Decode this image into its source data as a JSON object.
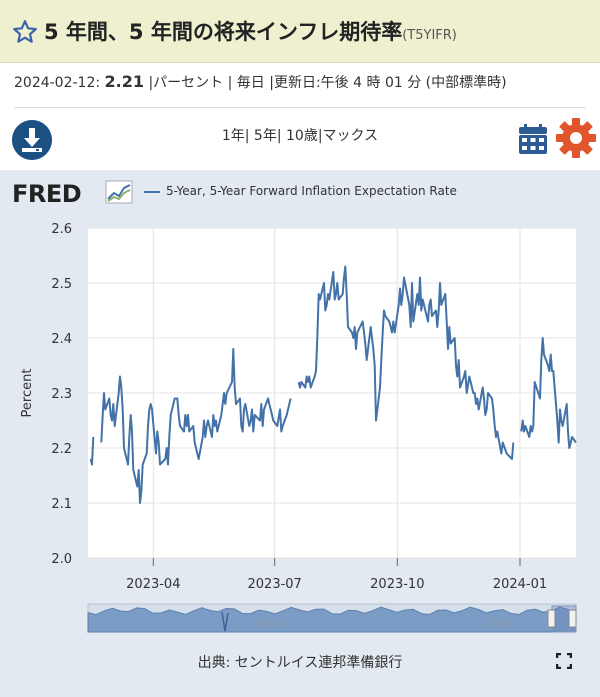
{
  "header": {
    "title": "5 年間、5 年間の将来インフレ期待率",
    "series_code": "(T5YIFR)"
  },
  "meta": {
    "date": "2024-02-12:",
    "value": "2.21",
    "rest": "|パーセント | 毎日 |更新日:午後 4 時 01 分 (中部標準時)"
  },
  "range_text": "1年| 5年| 10歳|マックス",
  "source_text": "出典: セントルイス連邦準備銀行",
  "brand": "FRED",
  "colors": {
    "line": "#4472a8",
    "accent": "#1c4f82",
    "gear": "#e0552c"
  },
  "icons": [
    "star-icon",
    "download-icon",
    "calendar-icon",
    "gear-icon",
    "fullscreen-icon",
    "fred-logo-icon"
  ],
  "chart_data": {
    "type": "line",
    "title": "",
    "ylabel": "Percent",
    "xlabel": "",
    "legend": [
      {
        "name": "5-Year, 5-Year Forward Inflation Expectation Rate",
        "color": "#4472a8"
      }
    ],
    "ylim": [
      2.0,
      2.6
    ],
    "yticks": [
      2.0,
      2.1,
      2.2,
      2.3,
      2.4,
      2.5,
      2.6
    ],
    "xlim": [
      "2023-02-11",
      "2024-02-12"
    ],
    "xticks": [
      "2023-04",
      "2023-07",
      "2023-10",
      "2024-01"
    ],
    "grid": true,
    "legend_position": "top-left",
    "series": [
      {
        "name": "5-Year, 5-Year Forward Inflation Expectation Rate",
        "points": [
          [
            "2023-02-13",
            2.18
          ],
          [
            "2023-02-14",
            2.17
          ],
          [
            "2023-02-15",
            2.22
          ],
          [
            "2023-02-21",
            2.21
          ],
          [
            "2023-02-22",
            2.26
          ],
          [
            "2023-02-23",
            2.3
          ],
          [
            "2023-02-24",
            2.27
          ],
          [
            "2023-02-27",
            2.29
          ],
          [
            "2023-02-28",
            2.26
          ],
          [
            "2023-03-01",
            2.25
          ],
          [
            "2023-03-02",
            2.28
          ],
          [
            "2023-03-03",
            2.24
          ],
          [
            "2023-03-06",
            2.3
          ],
          [
            "2023-03-07",
            2.33
          ],
          [
            "2023-03-08",
            2.31
          ],
          [
            "2023-03-09",
            2.27
          ],
          [
            "2023-03-10",
            2.2
          ],
          [
            "2023-03-13",
            2.17
          ],
          [
            "2023-03-14",
            2.22
          ],
          [
            "2023-03-15",
            2.26
          ],
          [
            "2023-03-16",
            2.23
          ],
          [
            "2023-03-17",
            2.16
          ],
          [
            "2023-03-20",
            2.13
          ],
          [
            "2023-03-21",
            2.16
          ],
          [
            "2023-03-22",
            2.1
          ],
          [
            "2023-03-23",
            2.12
          ],
          [
            "2023-03-24",
            2.17
          ],
          [
            "2023-03-27",
            2.19
          ],
          [
            "2023-03-28",
            2.24
          ],
          [
            "2023-03-29",
            2.27
          ],
          [
            "2023-03-30",
            2.28
          ],
          [
            "2023-03-31",
            2.27
          ],
          [
            "2023-04-03",
            2.19
          ],
          [
            "2023-04-04",
            2.23
          ],
          [
            "2023-04-05",
            2.21
          ],
          [
            "2023-04-06",
            2.17
          ],
          [
            "2023-04-10",
            2.18
          ],
          [
            "2023-04-11",
            2.2
          ],
          [
            "2023-04-12",
            2.17
          ],
          [
            "2023-04-13",
            2.22
          ],
          [
            "2023-04-14",
            2.26
          ],
          [
            "2023-04-17",
            2.29
          ],
          [
            "2023-04-18",
            2.29
          ],
          [
            "2023-04-19",
            2.29
          ],
          [
            "2023-04-20",
            2.26
          ],
          [
            "2023-04-21",
            2.24
          ],
          [
            "2023-04-24",
            2.23
          ],
          [
            "2023-04-25",
            2.26
          ],
          [
            "2023-04-26",
            2.24
          ],
          [
            "2023-04-27",
            2.26
          ],
          [
            "2023-04-28",
            2.23
          ],
          [
            "2023-05-01",
            2.24
          ],
          [
            "2023-05-02",
            2.21
          ],
          [
            "2023-05-03",
            2.2
          ],
          [
            "2023-05-04",
            2.19
          ],
          [
            "2023-05-05",
            2.18
          ],
          [
            "2023-05-08",
            2.22
          ],
          [
            "2023-05-09",
            2.25
          ],
          [
            "2023-05-10",
            2.22
          ],
          [
            "2023-05-11",
            2.24
          ],
          [
            "2023-05-12",
            2.25
          ],
          [
            "2023-05-15",
            2.22
          ],
          [
            "2023-05-16",
            2.26
          ],
          [
            "2023-05-17",
            2.24
          ],
          [
            "2023-05-18",
            2.25
          ],
          [
            "2023-05-19",
            2.23
          ],
          [
            "2023-05-22",
            2.26
          ],
          [
            "2023-05-23",
            2.28
          ],
          [
            "2023-05-24",
            2.3
          ],
          [
            "2023-05-25",
            2.28
          ],
          [
            "2023-05-26",
            2.3
          ],
          [
            "2023-05-30",
            2.32
          ],
          [
            "2023-05-31",
            2.38
          ],
          [
            "2023-06-01",
            2.31
          ],
          [
            "2023-06-02",
            2.28
          ],
          [
            "2023-06-05",
            2.29
          ],
          [
            "2023-06-06",
            2.24
          ],
          [
            "2023-06-07",
            2.23
          ],
          [
            "2023-06-08",
            2.27
          ],
          [
            "2023-06-09",
            2.28
          ],
          [
            "2023-06-12",
            2.24
          ],
          [
            "2023-06-13",
            2.25
          ],
          [
            "2023-06-14",
            2.27
          ],
          [
            "2023-06-15",
            2.23
          ],
          [
            "2023-06-16",
            2.26
          ],
          [
            "2023-06-20",
            2.25
          ],
          [
            "2023-06-21",
            2.28
          ],
          [
            "2023-06-22",
            2.24
          ],
          [
            "2023-06-23",
            2.27
          ],
          [
            "2023-06-26",
            2.29
          ],
          [
            "2023-06-27",
            2.28
          ],
          [
            "2023-06-28",
            2.27
          ],
          [
            "2023-06-29",
            2.26
          ],
          [
            "2023-06-30",
            2.25
          ],
          [
            "2023-07-03",
            2.24
          ],
          [
            "2023-07-05",
            2.27
          ],
          [
            "2023-07-06",
            2.23
          ],
          [
            "2023-07-07",
            2.24
          ],
          [
            "2023-07-10",
            2.26
          ],
          [
            "2023-07-11",
            2.27
          ],
          [
            "2023-07-12",
            2.28
          ],
          [
            "2023-07-13",
            2.29
          ],
          [
            "2023-07-19",
            2.32
          ],
          [
            "2023-07-20",
            2.31
          ],
          [
            "2023-07-21",
            2.32
          ],
          [
            "2023-07-24",
            2.31
          ],
          [
            "2023-07-25",
            2.33
          ],
          [
            "2023-07-26",
            2.32
          ],
          [
            "2023-07-27",
            2.33
          ],
          [
            "2023-07-28",
            2.31
          ],
          [
            "2023-07-31",
            2.33
          ],
          [
            "2023-08-01",
            2.34
          ],
          [
            "2023-08-02",
            2.4
          ],
          [
            "2023-08-03",
            2.48
          ],
          [
            "2023-08-04",
            2.47
          ],
          [
            "2023-08-07",
            2.5
          ],
          [
            "2023-08-08",
            2.45
          ],
          [
            "2023-08-09",
            2.46
          ],
          [
            "2023-08-10",
            2.48
          ],
          [
            "2023-08-11",
            2.47
          ],
          [
            "2023-08-14",
            2.52
          ],
          [
            "2023-08-15",
            2.47
          ],
          [
            "2023-08-16",
            2.48
          ],
          [
            "2023-08-17",
            2.5
          ],
          [
            "2023-08-18",
            2.47
          ],
          [
            "2023-08-21",
            2.48
          ],
          [
            "2023-08-22",
            2.51
          ],
          [
            "2023-08-23",
            2.53
          ],
          [
            "2023-08-24",
            2.48
          ],
          [
            "2023-08-25",
            2.42
          ],
          [
            "2023-08-28",
            2.41
          ],
          [
            "2023-08-29",
            2.4
          ],
          [
            "2023-08-30",
            2.42
          ],
          [
            "2023-08-31",
            2.38
          ],
          [
            "2023-09-01",
            2.41
          ],
          [
            "2023-09-05",
            2.43
          ],
          [
            "2023-09-06",
            2.41
          ],
          [
            "2023-09-07",
            2.39
          ],
          [
            "2023-09-08",
            2.36
          ],
          [
            "2023-09-11",
            2.42
          ],
          [
            "2023-09-12",
            2.4
          ],
          [
            "2023-09-13",
            2.38
          ],
          [
            "2023-09-14",
            2.35
          ],
          [
            "2023-09-15",
            2.25
          ],
          [
            "2023-09-18",
            2.31
          ],
          [
            "2023-09-19",
            2.36
          ],
          [
            "2023-09-20",
            2.41
          ],
          [
            "2023-09-21",
            2.45
          ],
          [
            "2023-09-22",
            2.44
          ],
          [
            "2023-09-25",
            2.43
          ],
          [
            "2023-09-26",
            2.42
          ],
          [
            "2023-09-27",
            2.41
          ],
          [
            "2023-09-28",
            2.43
          ],
          [
            "2023-09-29",
            2.41
          ],
          [
            "2023-10-02",
            2.46
          ],
          [
            "2023-10-03",
            2.49
          ],
          [
            "2023-10-04",
            2.46
          ],
          [
            "2023-10-05",
            2.48
          ],
          [
            "2023-10-06",
            2.51
          ],
          [
            "2023-10-10",
            2.46
          ],
          [
            "2023-10-11",
            2.42
          ],
          [
            "2023-10-12",
            2.5
          ],
          [
            "2023-10-13",
            2.43
          ],
          [
            "2023-10-16",
            2.48
          ],
          [
            "2023-10-17",
            2.46
          ],
          [
            "2023-10-18",
            2.51
          ],
          [
            "2023-10-19",
            2.45
          ],
          [
            "2023-10-20",
            2.47
          ],
          [
            "2023-10-23",
            2.44
          ],
          [
            "2023-10-24",
            2.43
          ],
          [
            "2023-10-25",
            2.46
          ],
          [
            "2023-10-26",
            2.47
          ],
          [
            "2023-10-27",
            2.44
          ],
          [
            "2023-10-30",
            2.45
          ],
          [
            "2023-10-31",
            2.42
          ],
          [
            "2023-11-01",
            2.45
          ],
          [
            "2023-11-02",
            2.5
          ],
          [
            "2023-11-03",
            2.46
          ],
          [
            "2023-11-06",
            2.48
          ],
          [
            "2023-11-07",
            2.43
          ],
          [
            "2023-11-08",
            2.38
          ],
          [
            "2023-11-09",
            2.42
          ],
          [
            "2023-11-10",
            2.39
          ],
          [
            "2023-11-13",
            2.4
          ],
          [
            "2023-11-14",
            2.35
          ],
          [
            "2023-11-15",
            2.33
          ],
          [
            "2023-11-16",
            2.36
          ],
          [
            "2023-11-17",
            2.31
          ],
          [
            "2023-11-20",
            2.33
          ],
          [
            "2023-11-21",
            2.34
          ],
          [
            "2023-11-22",
            2.3
          ],
          [
            "2023-11-24",
            2.33
          ],
          [
            "2023-11-27",
            2.3
          ],
          [
            "2023-11-28",
            2.3
          ],
          [
            "2023-11-29",
            2.28
          ],
          [
            "2023-11-30",
            2.29
          ],
          [
            "2023-12-01",
            2.27
          ],
          [
            "2023-12-04",
            2.31
          ],
          [
            "2023-12-05",
            2.29
          ],
          [
            "2023-12-06",
            2.26
          ],
          [
            "2023-12-07",
            2.27
          ],
          [
            "2023-12-08",
            2.3
          ],
          [
            "2023-12-11",
            2.29
          ],
          [
            "2023-12-12",
            2.27
          ],
          [
            "2023-12-13",
            2.24
          ],
          [
            "2023-12-14",
            2.22
          ],
          [
            "2023-12-15",
            2.23
          ],
          [
            "2023-12-18",
            2.19
          ],
          [
            "2023-12-19",
            2.21
          ],
          [
            "2023-12-22",
            2.19
          ],
          [
            "2023-12-26",
            2.18
          ],
          [
            "2023-12-27",
            2.21
          ],
          [
            "2024-01-02",
            2.23
          ],
          [
            "2024-01-03",
            2.25
          ],
          [
            "2024-01-04",
            2.23
          ],
          [
            "2024-01-05",
            2.24
          ],
          [
            "2024-01-08",
            2.22
          ],
          [
            "2024-01-09",
            2.24
          ],
          [
            "2024-01-10",
            2.23
          ],
          [
            "2024-01-11",
            2.24
          ],
          [
            "2024-01-12",
            2.32
          ],
          [
            "2024-01-16",
            2.29
          ],
          [
            "2024-01-17",
            2.36
          ],
          [
            "2024-01-18",
            2.4
          ],
          [
            "2024-01-19",
            2.37
          ],
          [
            "2024-01-22",
            2.35
          ],
          [
            "2024-01-23",
            2.34
          ],
          [
            "2024-01-24",
            2.37
          ],
          [
            "2024-01-25",
            2.34
          ],
          [
            "2024-01-26",
            2.34
          ],
          [
            "2024-01-29",
            2.25
          ],
          [
            "2024-01-30",
            2.21
          ],
          [
            "2024-01-31",
            2.27
          ],
          [
            "2024-02-01",
            2.25
          ],
          [
            "2024-02-02",
            2.24
          ],
          [
            "2024-02-05",
            2.28
          ],
          [
            "2024-02-06",
            2.23
          ],
          [
            "2024-02-07",
            2.2
          ],
          [
            "2024-02-08",
            2.21
          ],
          [
            "2024-02-09",
            2.22
          ],
          [
            "2024-02-12",
            2.21
          ]
        ]
      }
    ],
    "overview": {
      "labels": [
        "2010",
        "2020"
      ]
    }
  }
}
